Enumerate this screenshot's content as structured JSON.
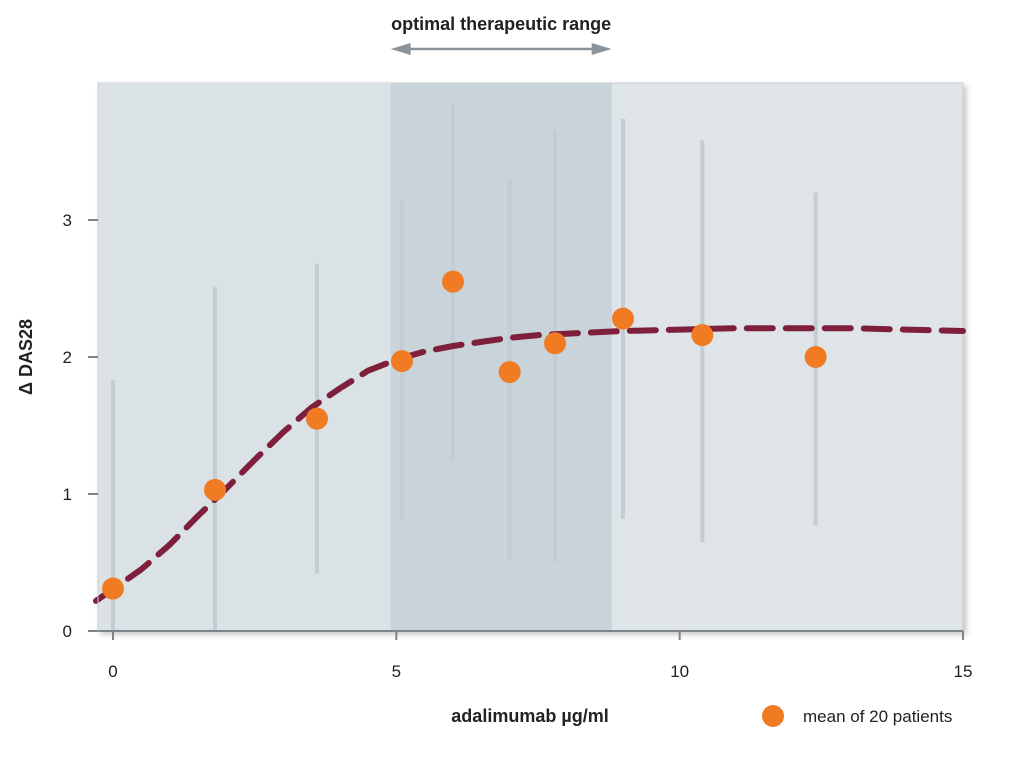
{
  "chart_data": {
    "type": "scatter",
    "xlabel": "adalimumab µg/ml",
    "ylabel": "Δ DAS28",
    "xlim": [
      -0.5,
      15
    ],
    "ylim": [
      0,
      4
    ],
    "x_ticks": [
      0,
      5,
      10,
      15
    ],
    "y_ticks": [
      0,
      1,
      2,
      3
    ],
    "grid": false,
    "legend_position": "bottom-right",
    "shaded_region": {
      "label": "optimal therapeutic range",
      "x_start": 4.9,
      "x_end": 8.8
    },
    "series": [
      {
        "name": "mean of 20 patients",
        "type": "scatter",
        "points": [
          {
            "x": 0.0,
            "y": 0.31,
            "low": -0.1,
            "high": 1.83
          },
          {
            "x": 1.8,
            "y": 1.03,
            "low": 0.0,
            "high": 2.51
          },
          {
            "x": 3.6,
            "y": 1.55,
            "low": 0.42,
            "high": 2.68
          },
          {
            "x": 5.1,
            "y": 1.97,
            "low": 0.82,
            "high": 3.15
          },
          {
            "x": 6.0,
            "y": 2.55,
            "low": 1.25,
            "high": 3.85
          },
          {
            "x": 7.0,
            "y": 1.89,
            "low": 0.51,
            "high": 3.3
          },
          {
            "x": 7.8,
            "y": 2.1,
            "low": 0.5,
            "high": 3.66
          },
          {
            "x": 9.0,
            "y": 2.28,
            "low": 0.82,
            "high": 3.74
          },
          {
            "x": 10.4,
            "y": 2.16,
            "low": 0.65,
            "high": 3.58
          },
          {
            "x": 12.4,
            "y": 2.0,
            "low": 0.77,
            "high": 3.2
          }
        ]
      },
      {
        "type": "line",
        "style": "dashed",
        "x": [
          -0.3,
          0.5,
          1.0,
          1.5,
          2.0,
          2.5,
          3.0,
          3.5,
          4.0,
          4.5,
          5.0,
          5.5,
          6.0,
          6.5,
          7.0,
          7.5,
          8.0,
          9.0,
          10.0,
          11.0,
          12.0,
          13.0,
          14.0,
          15.0
        ],
        "y": [
          0.22,
          0.45,
          0.63,
          0.84,
          1.04,
          1.25,
          1.45,
          1.63,
          1.77,
          1.9,
          1.98,
          2.04,
          2.08,
          2.11,
          2.14,
          2.16,
          2.17,
          2.19,
          2.2,
          2.21,
          2.21,
          2.21,
          2.2,
          2.19
        ]
      }
    ]
  },
  "colors": {
    "plot_background": "#dee4e8",
    "left_background": "#dae2e6",
    "shaded_region": "#c8d3da",
    "error_bars": "#c2ccd3",
    "markers": "#f07b22",
    "fit_line": "#7e1f3b",
    "axis": "#7b858c",
    "arrow": "#8b9399"
  }
}
